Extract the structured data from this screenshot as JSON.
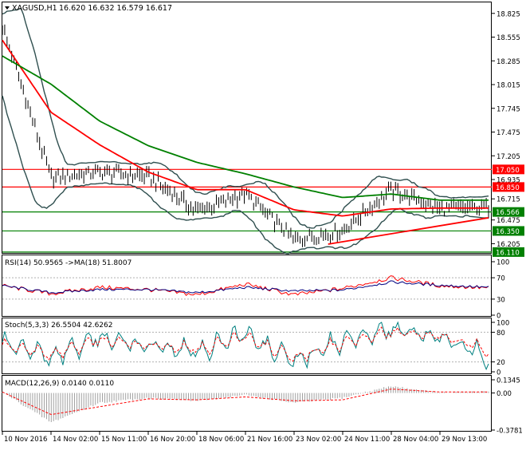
{
  "main_panel": {
    "symbol_label": "XAGUSD,H1",
    "ohlc_label": "16.620 16.632 16.579 16.617",
    "axis_ticks": [
      "18.825",
      "18.555",
      "18.285",
      "18.015",
      "17.745",
      "17.475",
      "17.205",
      "16.935",
      "16.715",
      "16.475",
      "16.205"
    ],
    "price_lines": [
      {
        "price": 17.05,
        "label": "17.050",
        "color": "#ff0000"
      },
      {
        "price": 16.85,
        "label": "16.850",
        "color": "#ff0000"
      },
      {
        "price": 16.566,
        "label": "16.566",
        "color": "#008000"
      },
      {
        "price": 16.35,
        "label": "16.350",
        "color": "#008000"
      },
      {
        "price": 16.11,
        "label": "16.110",
        "color": "#008000"
      }
    ]
  },
  "rsi_panel": {
    "label": "RSI(14) 50.9565  ->MA(18) 51.8007",
    "axis_ticks": [
      "100",
      "70",
      "30",
      "0"
    ]
  },
  "stoch_panel": {
    "label": "Stoch(5,3,3) 26.5504 42.6262",
    "axis_ticks": [
      "100",
      "80",
      "20",
      "0"
    ]
  },
  "macd_panel": {
    "label": "MACD(12,26,9) 0.0140 0.0110",
    "axis_ticks": [
      "0.1345",
      "0.00",
      "-0.3781"
    ]
  },
  "x_axis_labels": [
    "10 Nov 2016",
    "14 Nov 02:00",
    "15 Nov 11:00",
    "16 Nov 20:00",
    "18 Nov 06:00",
    "21 Nov 16:00",
    "23 Nov 02:00",
    "24 Nov 11:00",
    "28 Nov 04:00",
    "29 Nov 13:00"
  ],
  "colors": {
    "price_bars": "#000000",
    "ma_fast": "#ff0000",
    "ma_slow": "#008000",
    "bands": "#2f4f4f",
    "rsi": "#ff0000",
    "rsi_ma": "#000080",
    "stoch_main": "#008080",
    "stoch_signal": "#ff0000",
    "macd_hist": "#a0a0a0",
    "macd_signal": "#ff0000"
  },
  "chart_data": [
    {
      "type": "line",
      "title": "XAGUSD,H1",
      "ylim": [
        16.1,
        18.95
      ],
      "x": [
        "10 Nov 2016",
        "14 Nov 02:00",
        "15 Nov 11:00",
        "16 Nov 20:00",
        "18 Nov 06:00",
        "21 Nov 16:00",
        "23 Nov 02:00",
        "24 Nov 11:00",
        "28 Nov 04:00",
        "29 Nov 13:00",
        "29 Nov 20:00"
      ],
      "series": [
        {
          "name": "price",
          "values": [
            18.68,
            16.95,
            17.02,
            16.97,
            16.58,
            16.77,
            16.25,
            16.35,
            16.82,
            16.6,
            16.617
          ]
        },
        {
          "name": "fast MA",
          "values": [
            18.52,
            17.7,
            17.33,
            17.02,
            16.82,
            16.82,
            16.59,
            16.52,
            16.6,
            16.61,
            16.61
          ]
        },
        {
          "name": "slow MA",
          "values": [
            18.34,
            18.02,
            17.6,
            17.32,
            17.13,
            17.0,
            16.85,
            16.73,
            16.77,
            16.7,
            16.7
          ]
        }
      ],
      "trendline": {
        "start": [
          "24 Nov 02:00",
          16.2
        ],
        "end": [
          "29 Nov 20:00",
          16.5
        ]
      },
      "price_levels": [
        17.05,
        16.85,
        16.566,
        16.35,
        16.11
      ]
    },
    {
      "type": "line",
      "title": "RSI(14) 50.9565  ->MA(18) 51.8007",
      "ylim": [
        0,
        100
      ],
      "levels": [
        70,
        30
      ],
      "x": [
        "10 Nov 2016",
        "14 Nov 02:00",
        "15 Nov 11:00",
        "16 Nov 20:00",
        "18 Nov 06:00",
        "21 Nov 16:00",
        "23 Nov 02:00",
        "24 Nov 11:00",
        "28 Nov 04:00",
        "29 Nov 13:00",
        "29 Nov 20:00"
      ],
      "series": [
        {
          "name": "RSI",
          "values": [
            55,
            40,
            52,
            48,
            38,
            58,
            38,
            50,
            70,
            55,
            51
          ]
        },
        {
          "name": "MA",
          "values": [
            55,
            42,
            48,
            48,
            42,
            52,
            45,
            47,
            62,
            56,
            52
          ]
        }
      ]
    },
    {
      "type": "line",
      "title": "Stoch(5,3,3) 26.5504 42.6262",
      "ylim": [
        0,
        100
      ],
      "levels": [
        80,
        20
      ],
      "x": [
        "10 Nov 2016",
        "14 Nov 02:00",
        "15 Nov 11:00",
        "16 Nov 20:00",
        "18 Nov 06:00",
        "21 Nov 16:00",
        "23 Nov 02:00",
        "24 Nov 11:00",
        "28 Nov 04:00",
        "29 Nov 13:00",
        "29 Nov 20:00"
      ],
      "series": [
        {
          "name": "main",
          "values": [
            60,
            30,
            70,
            55,
            40,
            75,
            25,
            65,
            85,
            70,
            26.55
          ]
        },
        {
          "name": "signal",
          "values": [
            55,
            35,
            65,
            55,
            45,
            70,
            30,
            60,
            80,
            72,
            42.63
          ]
        }
      ]
    },
    {
      "type": "bar",
      "title": "MACD(12,26,9) 0.0140 0.0110",
      "ylim": [
        -0.3781,
        0.1345
      ],
      "x": [
        "10 Nov 2016",
        "14 Nov 02:00",
        "15 Nov 11:00",
        "16 Nov 20:00",
        "18 Nov 06:00",
        "21 Nov 16:00",
        "23 Nov 02:00",
        "24 Nov 11:00",
        "28 Nov 04:00",
        "29 Nov 13:00",
        "29 Nov 20:00"
      ],
      "series": [
        {
          "name": "MACD",
          "values": [
            0.01,
            -0.3,
            -0.1,
            -0.05,
            -0.08,
            -0.02,
            -0.1,
            -0.05,
            0.07,
            0.0,
            0.014
          ]
        },
        {
          "name": "signal",
          "values": [
            0.01,
            -0.22,
            -0.14,
            -0.06,
            -0.07,
            -0.04,
            -0.08,
            -0.07,
            0.04,
            0.01,
            0.011
          ]
        }
      ]
    }
  ]
}
